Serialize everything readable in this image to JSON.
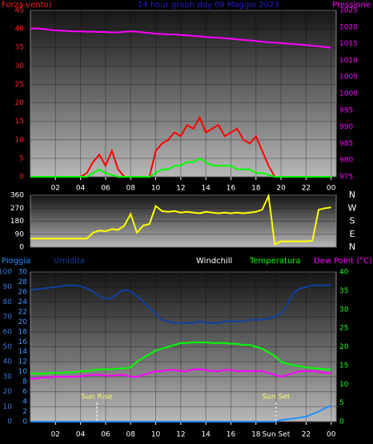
{
  "chart_data": [
    {
      "type": "line",
      "title": "24 hour graph day 09 Maggio 2023",
      "y_label": "Forza vento)",
      "y2_label": "Pressione",
      "x": [
        0,
        0.5,
        1,
        1.5,
        2,
        2.5,
        3,
        3.5,
        4,
        4.5,
        5,
        5.5,
        6,
        6.5,
        7,
        7.5,
        8,
        8.5,
        9,
        9.5,
        10,
        10.5,
        11,
        11.5,
        12,
        12.5,
        13,
        13.5,
        14,
        14.5,
        15,
        15.5,
        16,
        16.5,
        17,
        17.5,
        18,
        18.5,
        19,
        19.5,
        20,
        20.5,
        21,
        21.5,
        22,
        22.5,
        23,
        23.5,
        24
      ],
      "xlim": [
        0,
        24.4
      ],
      "xticks": [
        {
          "value": 2,
          "label": "02"
        },
        {
          "value": 4,
          "label": "04"
        },
        {
          "value": 6,
          "label": "06"
        },
        {
          "value": 8,
          "label": "08"
        },
        10,
        12,
        14,
        16,
        18,
        20,
        22,
        {
          "value": 24,
          "label": "00"
        }
      ],
      "ylim": [
        0,
        45
      ],
      "yticks": [
        0,
        5,
        10,
        15,
        20,
        25,
        30,
        35,
        40,
        45
      ],
      "y2lim": [
        975,
        1025
      ],
      "y2ticks": [
        975,
        980,
        985,
        990,
        995,
        1000,
        1005,
        1010,
        1015,
        1020,
        1025
      ],
      "grid": true,
      "series": [
        {
          "color": "#ff0000",
          "values": [
            0,
            0,
            0,
            0,
            0,
            0,
            0,
            0,
            0,
            1,
            4,
            6,
            3,
            7,
            2,
            0,
            0,
            0,
            0,
            0,
            7,
            9,
            10,
            12,
            11,
            14,
            13,
            16,
            12,
            13,
            14,
            11,
            12,
            13,
            10,
            9,
            11,
            7,
            3,
            0,
            0,
            0,
            0,
            0,
            0,
            0,
            0,
            0,
            0
          ]
        },
        {
          "color": "#00ff00",
          "values": [
            0,
            0,
            0,
            0,
            0,
            0,
            0,
            0,
            0,
            0,
            1,
            2,
            1,
            0.5,
            0,
            0,
            0,
            0,
            0,
            0,
            1,
            2,
            2,
            3,
            3,
            4,
            4,
            5,
            4,
            3,
            3,
            3,
            3,
            2,
            2,
            2,
            1,
            1,
            0.5,
            0,
            0,
            0,
            0,
            0,
            0,
            0,
            0,
            0,
            0
          ]
        },
        {
          "color": "#ff00ff",
          "axis": "y2",
          "values": [
            1019.5,
            1019.6,
            1019.4,
            1019.2,
            1019,
            1018.9,
            1018.8,
            1018.7,
            1018.7,
            1018.6,
            1018.6,
            1018.5,
            1018.5,
            1018.4,
            1018.4,
            1018.6,
            1018.7,
            1018.6,
            1018.4,
            1018.2,
            1018.0,
            1017.9,
            1017.8,
            1017.8,
            1017.6,
            1017.5,
            1017.3,
            1017.2,
            1017.0,
            1016.9,
            1016.8,
            1016.6,
            1016.5,
            1016.3,
            1016.1,
            1016.0,
            1015.8,
            1015.6,
            1015.4,
            1015.3,
            1015.2,
            1015.0,
            1014.9,
            1014.7,
            1014.6,
            1014.4,
            1014.2,
            1014.0,
            1013.8
          ]
        }
      ]
    },
    {
      "type": "line",
      "x": [
        0,
        0.5,
        1,
        1.5,
        2,
        2.5,
        3,
        3.5,
        4,
        4.5,
        5,
        5.5,
        6,
        6.5,
        7,
        7.5,
        8,
        8.5,
        9,
        9.5,
        10,
        10.5,
        11,
        11.5,
        12,
        12.5,
        13,
        13.5,
        14,
        14.5,
        15,
        15.5,
        16,
        16.5,
        17,
        17.5,
        18,
        18.5,
        19,
        19.5,
        20,
        20.5,
        21,
        21.5,
        22,
        22.5,
        23,
        23.5,
        24
      ],
      "xlim": [
        0,
        24.4
      ],
      "ylim": [
        0,
        360
      ],
      "yticks": [
        0,
        90,
        180,
        270,
        360
      ],
      "y2lim": [
        0,
        360
      ],
      "y2ticks": [
        {
          "value": 0,
          "label": "N"
        },
        {
          "value": 90,
          "label": "E"
        },
        {
          "value": 180,
          "label": "S"
        },
        {
          "value": 270,
          "label": "W"
        },
        {
          "value": 360,
          "label": "N"
        }
      ],
      "grid": true,
      "series": [
        {
          "color": "#ffff00",
          "values": [
            60,
            60,
            60,
            60,
            60,
            60,
            60,
            60,
            60,
            60,
            100,
            115,
            110,
            125,
            120,
            150,
            230,
            100,
            150,
            160,
            285,
            250,
            245,
            250,
            240,
            245,
            240,
            235,
            245,
            240,
            235,
            240,
            235,
            240,
            235,
            240,
            245,
            260,
            355,
            20,
            40,
            40,
            40,
            40,
            40,
            45,
            260,
            270,
            275
          ]
        }
      ]
    },
    {
      "type": "line",
      "windchill_label": "Windchill",
      "x": [
        0,
        0.5,
        1,
        1.5,
        2,
        2.5,
        3,
        3.5,
        4,
        4.5,
        5,
        5.5,
        6,
        6.5,
        7,
        7.5,
        8,
        8.5,
        9,
        9.5,
        10,
        10.5,
        11,
        11.5,
        12,
        12.5,
        13,
        13.5,
        14,
        14.5,
        15,
        15.5,
        16,
        16.5,
        17,
        17.5,
        18,
        18.5,
        19,
        19.5,
        20,
        20.5,
        21,
        21.5,
        22,
        22.5,
        23,
        23.5,
        24
      ],
      "xlim": [
        0,
        24.4
      ],
      "xticks": [
        {
          "value": 2,
          "label": "02"
        },
        {
          "value": 4,
          "label": "04"
        },
        {
          "value": 6,
          "label": "06"
        },
        {
          "value": 8,
          "label": "08"
        },
        10,
        12,
        14,
        16,
        18,
        {
          "value": 19.6,
          "label": "Sun Set"
        },
        22,
        {
          "value": 24,
          "label": "00"
        }
      ],
      "ylim": [
        0,
        100
      ],
      "yticks": [
        0,
        10,
        20,
        30,
        40,
        50,
        60,
        70,
        80,
        90,
        100
      ],
      "y2lim": [
        0,
        30
      ],
      "y2ticks": [
        0,
        2,
        4,
        6,
        8,
        10,
        12,
        14,
        16,
        18,
        20,
        22,
        24,
        26,
        28,
        30
      ],
      "y3lim": [
        0,
        40
      ],
      "y3ticks": [
        0,
        5,
        10,
        15,
        20,
        25,
        30,
        35,
        40
      ],
      "grid": true,
      "annotations": [
        {
          "text": "Sun Rise",
          "x": 5.3
        },
        {
          "text": "Sun Set",
          "x": 19.6
        }
      ],
      "series": [
        {
          "name": "Pioggia",
          "color": "#1e90ff",
          "axis": "y2",
          "values": [
            0,
            0,
            0,
            0,
            0,
            0,
            0,
            0,
            0,
            0,
            0,
            0,
            0,
            0,
            0,
            0,
            0,
            0,
            0,
            0,
            0,
            0,
            0,
            0,
            0,
            0,
            0,
            0,
            0,
            0,
            0,
            0,
            0,
            0,
            0,
            0,
            0,
            0,
            0,
            0,
            0.3,
            0.5,
            0.6,
            0.8,
            1,
            1.5,
            2,
            2.7,
            3.2
          ]
        },
        {
          "name": "Umidita",
          "color": "#1040a0",
          "values": [
            88,
            88.5,
            89,
            89.5,
            90,
            90.5,
            91,
            91,
            90.5,
            89,
            87,
            84,
            82,
            82.5,
            86,
            88,
            87,
            84,
            80,
            76,
            72,
            68,
            67,
            66,
            66,
            66,
            66,
            67,
            66,
            66,
            66,
            67,
            67,
            67,
            67,
            68,
            68,
            68,
            69,
            70,
            72,
            78,
            86,
            89,
            90,
            91,
            91,
            91,
            91
          ]
        },
        {
          "name": "Temperatura",
          "color": "#00ff00",
          "axis": "y3",
          "values": [
            13,
            12.8,
            12.8,
            13,
            13,
            13,
            13.2,
            13.2,
            13.5,
            13.5,
            13.8,
            14,
            14,
            14,
            14.2,
            14.2,
            14.5,
            16,
            17,
            18,
            19,
            19.5,
            20,
            20.5,
            21,
            21,
            21.2,
            21.2,
            21.2,
            21,
            21,
            21,
            20.8,
            20.8,
            20.5,
            20.5,
            20,
            19.5,
            18.5,
            17.5,
            16,
            15.5,
            15,
            14.8,
            14.5,
            14.3,
            14.2,
            14,
            14
          ]
        },
        {
          "name": "Dew Point (°C)",
          "color": "#ff00ff",
          "axis": "y3",
          "values": [
            11.5,
            11.5,
            11.8,
            11.8,
            12,
            12,
            12,
            12,
            12.2,
            12.3,
            12.5,
            12.5,
            12.3,
            12.3,
            12.5,
            12.5,
            12,
            12,
            12.5,
            13,
            13.5,
            13.5,
            13.8,
            13.8,
            13.5,
            13.5,
            14,
            14,
            13.8,
            13.5,
            13.5,
            13.8,
            13.8,
            13.5,
            13.5,
            13.5,
            13.5,
            13.5,
            13,
            12.5,
            12,
            12.5,
            13,
            13.5,
            13.5,
            13.5,
            13.3,
            13,
            13
          ]
        }
      ]
    }
  ]
}
